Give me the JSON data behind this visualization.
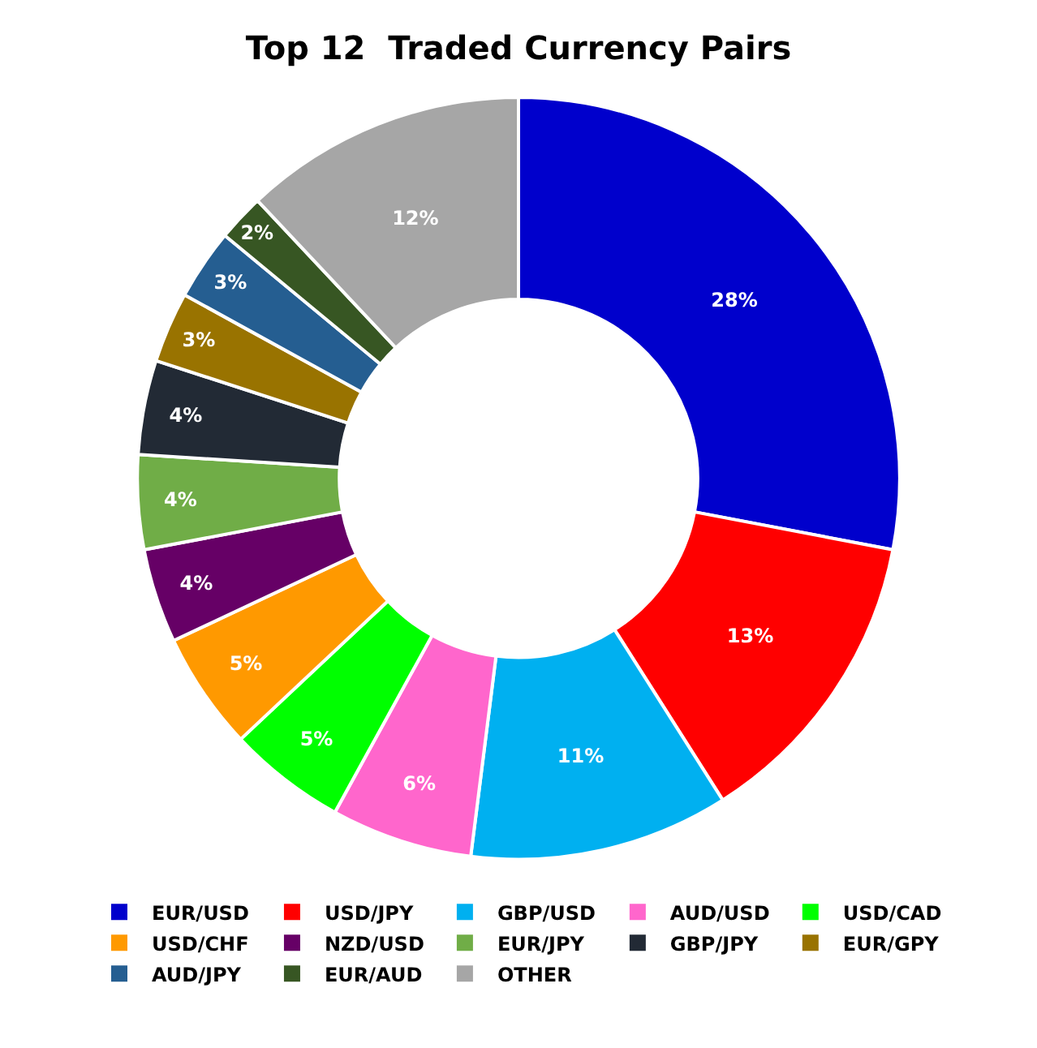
{
  "chart_data": {
    "type": "donut",
    "title": "Top 12  Traded Currency Pairs",
    "categories": [
      "EUR/USD",
      "USD/JPY",
      "GBP/USD",
      "AUD/USD",
      "USD/CAD",
      "USD/CHF",
      "NZD/USD",
      "EUR/JPY",
      "GBP/JPY",
      "EUR/GPY",
      "AUD/JPY",
      "EUR/AUD",
      "OTHER"
    ],
    "values": [
      28,
      13,
      11,
      6,
      5,
      5,
      4,
      4,
      4,
      3,
      3,
      2,
      12
    ],
    "value_labels": [
      "28%",
      "13%",
      "11%",
      "6%",
      "5%",
      "5%",
      "4%",
      "4%",
      "4%",
      "3%",
      "3%",
      "2%",
      "12%"
    ],
    "colors": [
      "#0000cc",
      "#ff0000",
      "#00b0f0",
      "#ff66cc",
      "#00ff00",
      "#ff9900",
      "#660066",
      "#70ad47",
      "#222a35",
      "#997300",
      "#255e91",
      "#375623",
      "#a6a6a6"
    ],
    "legend": "bottom"
  }
}
